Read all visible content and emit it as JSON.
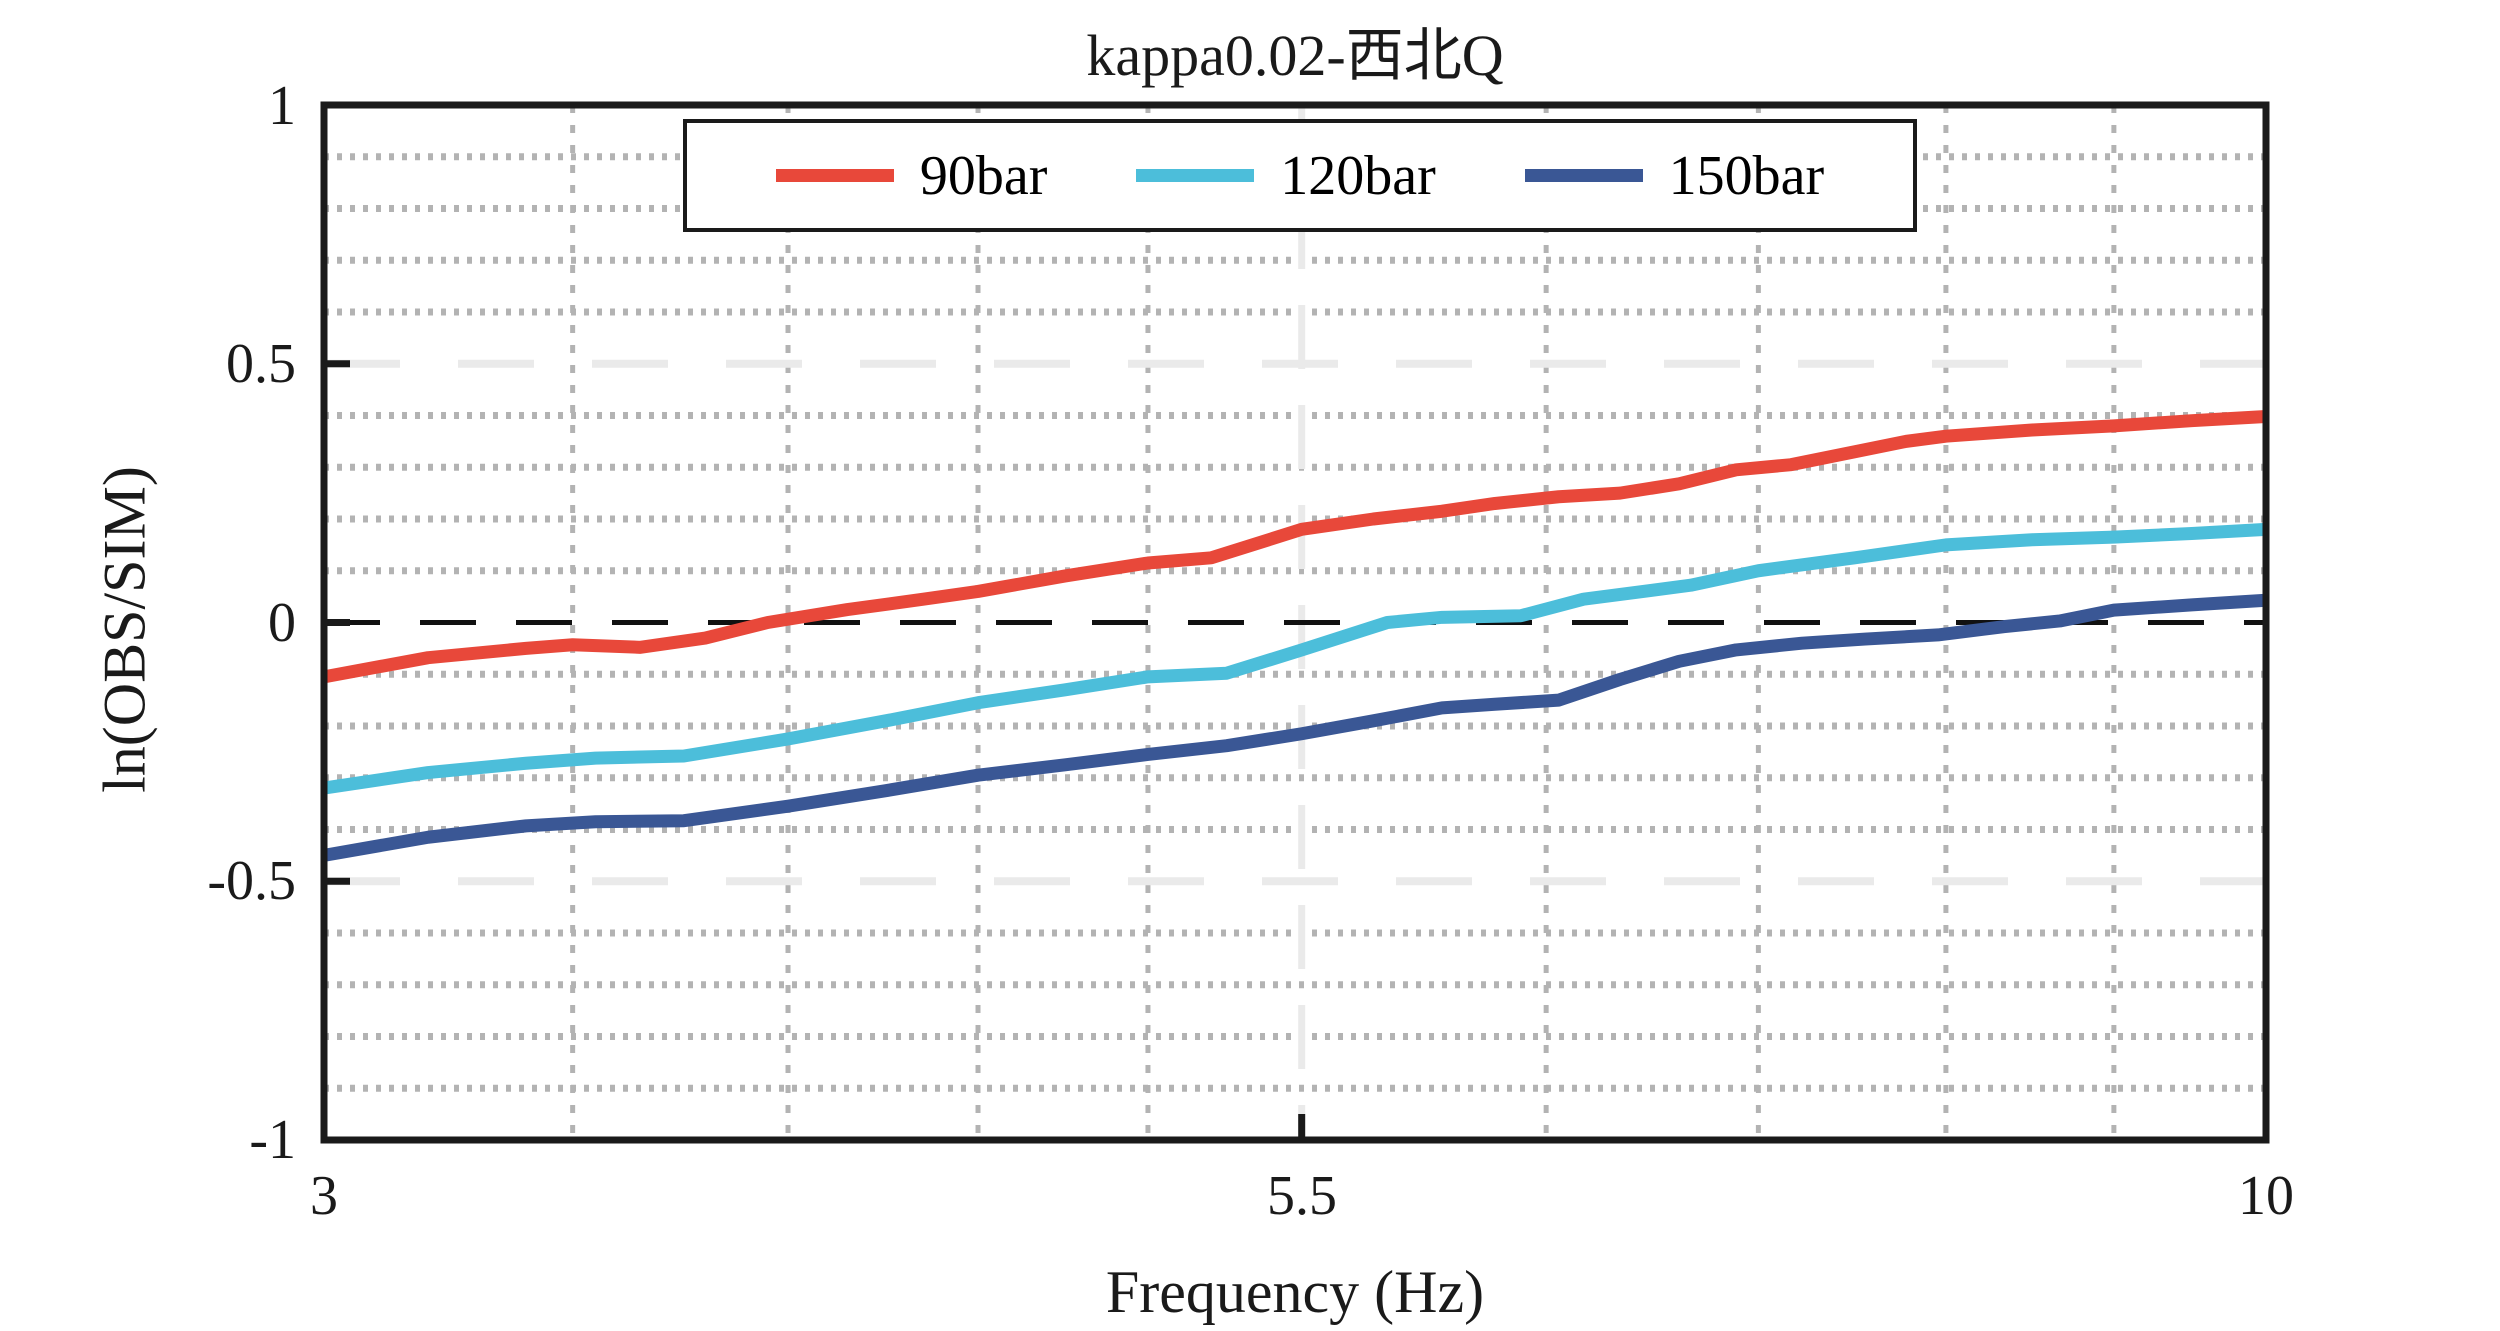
{
  "title": "kappa0.02-西北Q",
  "axes": {
    "xlabel": "Frequency (Hz)",
    "ylabel": "ln(OBS/SIM)",
    "xtick_labels": [
      "3",
      "5.5",
      "10"
    ],
    "ytick_labels": [
      "1",
      "0.5",
      "0",
      "-0.5",
      "-1"
    ]
  },
  "legend": {
    "items": [
      {
        "label": "90bar",
        "color": "#E8483A"
      },
      {
        "label": "120bar",
        "color": "#4CBEDA"
      },
      {
        "label": "150bar",
        "color": "#3A5795"
      }
    ]
  },
  "chart_data": {
    "type": "line",
    "title": "kappa0.02-西北Q",
    "xlabel": "Frequency (Hz)",
    "ylabel": "ln(OBS/SIM)",
    "xscale": "log",
    "xlim": [
      3,
      10
    ],
    "ylim": [
      -1,
      1
    ],
    "xticks": [
      3,
      5.5,
      10
    ],
    "yticks": [
      1,
      0.5,
      0,
      -0.5,
      -1
    ],
    "x_minor_gridlines": [
      3.5,
      4,
      4.5,
      5,
      6.4,
      7.3,
      8.2,
      9.1
    ],
    "x_major_gridlines": [
      5.5
    ],
    "y_minor_gridlines": [
      0.9,
      0.8,
      0.7,
      0.6,
      0.4,
      0.3,
      0.2,
      0.1,
      -0.1,
      -0.2,
      -0.3,
      -0.4,
      -0.6,
      -0.7,
      -0.8,
      -0.9
    ],
    "y_major_gridlines": [
      0.5,
      -0.5
    ],
    "zero_reference_line": 0,
    "grid_style": {
      "minor_color": "#B3B3B3",
      "major_color": "#EAEAEA",
      "zero_color": "#111111",
      "axis_color": "#1a1a1a"
    },
    "legend_position": "top-center-inside",
    "series": [
      {
        "name": "90bar",
        "color": "#E8483A",
        "x": [
          3,
          3.2,
          3.4,
          3.5,
          3.65,
          3.8,
          3.95,
          4.15,
          4.35,
          4.5,
          4.75,
          5,
          5.2,
          5.5,
          5.75,
          6,
          6.2,
          6.45,
          6.7,
          6.95,
          7.2,
          7.45,
          7.75,
          8,
          8.2,
          8.65,
          9.1,
          9.55,
          10
        ],
        "y": [
          -0.105,
          -0.068,
          -0.05,
          -0.043,
          -0.048,
          -0.03,
          0,
          0.025,
          0.045,
          0.06,
          0.09,
          0.115,
          0.125,
          0.18,
          0.2,
          0.215,
          0.23,
          0.243,
          0.25,
          0.268,
          0.295,
          0.305,
          0.33,
          0.35,
          0.36,
          0.372,
          0.38,
          0.39,
          0.398
        ]
      },
      {
        "name": "120bar",
        "color": "#4CBEDA",
        "x": [
          3,
          3.2,
          3.4,
          3.55,
          3.75,
          4,
          4.25,
          4.5,
          4.75,
          5,
          5.25,
          5.5,
          5.8,
          6,
          6.3,
          6.55,
          7,
          7.3,
          7.75,
          8.2,
          8.65,
          9.1,
          9.55,
          10
        ],
        "y": [
          -0.32,
          -0.29,
          -0.272,
          -0.262,
          -0.258,
          -0.225,
          -0.19,
          -0.155,
          -0.13,
          -0.105,
          -0.098,
          -0.053,
          0,
          0.01,
          0.013,
          0.045,
          0.072,
          0.1,
          0.125,
          0.15,
          0.16,
          0.165,
          0.172,
          0.18
        ]
      },
      {
        "name": "150bar",
        "color": "#3A5795",
        "x": [
          3,
          3.2,
          3.4,
          3.55,
          3.75,
          4,
          4.25,
          4.5,
          4.75,
          5,
          5.25,
          5.5,
          5.75,
          6,
          6.2,
          6.45,
          6.7,
          6.95,
          7.2,
          7.5,
          7.8,
          8.16,
          8.5,
          8.8,
          9.1,
          9.55,
          10
        ],
        "y": [
          -0.45,
          -0.415,
          -0.393,
          -0.385,
          -0.383,
          -0.355,
          -0.325,
          -0.295,
          -0.275,
          -0.255,
          -0.238,
          -0.215,
          -0.19,
          -0.165,
          -0.158,
          -0.15,
          -0.11,
          -0.075,
          -0.053,
          -0.04,
          -0.032,
          -0.024,
          -0.008,
          0.003,
          0.024,
          0.034,
          0.043
        ]
      }
    ]
  }
}
